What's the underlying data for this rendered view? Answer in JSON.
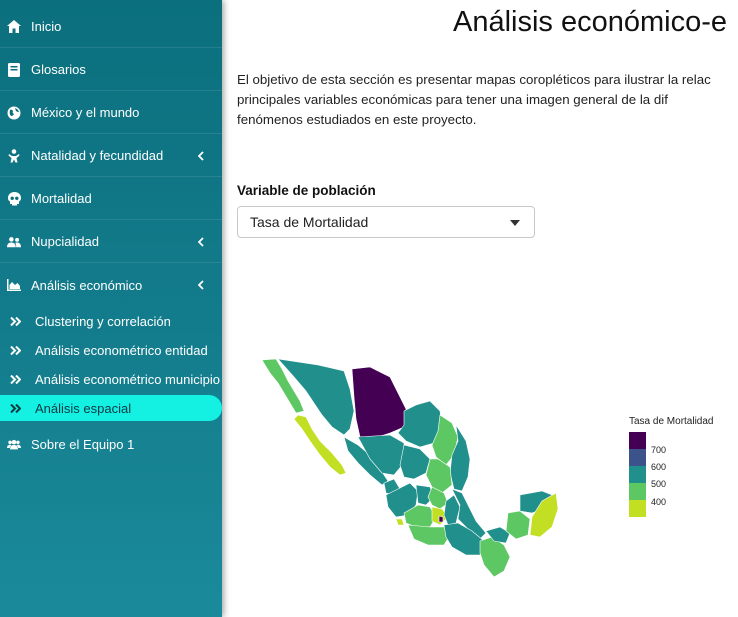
{
  "sidebar": {
    "items": [
      {
        "label": "Inicio",
        "icon": "home-icon"
      },
      {
        "label": "Glosarios",
        "icon": "book-icon"
      },
      {
        "label": "México y el mundo",
        "icon": "globe-icon"
      },
      {
        "label": "Natalidad y fecundidad",
        "icon": "baby-icon"
      },
      {
        "label": "Mortalidad",
        "icon": "skull-icon"
      },
      {
        "label": "Nupcialidad",
        "icon": "couple-icon"
      },
      {
        "label": "Análisis económico",
        "icon": "area-chart-icon"
      }
    ],
    "subitems": [
      {
        "label": "Clustering y correlación"
      },
      {
        "label": "Análisis econométrico entidad"
      },
      {
        "label": "Análisis econométrico municipio"
      },
      {
        "label": "Análisis espacial",
        "active": true
      }
    ],
    "last_item": {
      "label": "Sobre el Equipo 1",
      "icon": "users-icon"
    },
    "active_color": "#14f0e2"
  },
  "main": {
    "title": "Análisis económico-e",
    "paragraph_lines": [
      "El objetivo de esta sección es presentar mapas coropléticos para ilustrar la relac",
      "principales variables económicas para tener una imagen general de la dif",
      "fenómenos estudiados en este proyecto."
    ],
    "select_label": "Variable de población",
    "select_value": "Tasa de Mortalidad"
  },
  "map_legend": {
    "title": "Tasa de Mortalidad",
    "ticks": [
      "700",
      "600",
      "500",
      "400"
    ],
    "colors": [
      "#440154",
      "#3b528b",
      "#21908c",
      "#5dc863",
      "#c2df23"
    ]
  }
}
